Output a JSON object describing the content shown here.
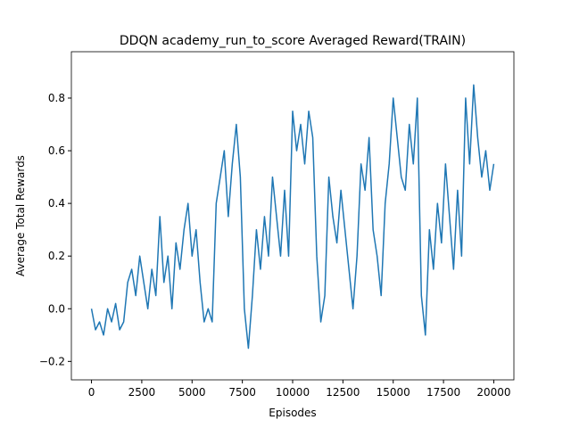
{
  "chart_data": {
    "type": "line",
    "title": "DDQN academy_run_to_score Averaged Reward(TRAIN)",
    "xlabel": "Episodes",
    "ylabel": "Average Total Rewards",
    "x": [
      0,
      200,
      400,
      600,
      800,
      1000,
      1200,
      1400,
      1600,
      1800,
      2000,
      2200,
      2400,
      2600,
      2800,
      3000,
      3200,
      3400,
      3600,
      3800,
      4000,
      4200,
      4400,
      4600,
      4800,
      5000,
      5200,
      5400,
      5600,
      5800,
      6000,
      6200,
      6400,
      6600,
      6800,
      7000,
      7200,
      7400,
      7600,
      7800,
      8000,
      8200,
      8400,
      8600,
      8800,
      9000,
      9200,
      9400,
      9600,
      9800,
      10000,
      10200,
      10400,
      10600,
      10800,
      11000,
      11200,
      11400,
      11600,
      11800,
      12000,
      12200,
      12400,
      12600,
      12800,
      13000,
      13200,
      13400,
      13600,
      13800,
      14000,
      14200,
      14400,
      14600,
      14800,
      15000,
      15200,
      15400,
      15600,
      15800,
      16000,
      16200,
      16400,
      16600,
      16800,
      17000,
      17200,
      17400,
      17600,
      17800,
      18000,
      18200,
      18400,
      18600,
      18800,
      19000,
      19200,
      19400,
      19600,
      19800,
      20000
    ],
    "series": [
      {
        "color": "#1f77b4",
        "values": [
          0.0,
          -0.08,
          -0.05,
          -0.1,
          0.0,
          -0.05,
          0.02,
          -0.08,
          -0.05,
          0.1,
          0.15,
          0.05,
          0.2,
          0.1,
          0.0,
          0.15,
          0.05,
          0.35,
          0.1,
          0.2,
          0.0,
          0.25,
          0.15,
          0.3,
          0.4,
          0.2,
          0.3,
          0.1,
          -0.05,
          0.0,
          -0.05,
          0.4,
          0.5,
          0.6,
          0.35,
          0.55,
          0.7,
          0.5,
          0.0,
          -0.15,
          0.05,
          0.3,
          0.15,
          0.35,
          0.2,
          0.5,
          0.35,
          0.2,
          0.45,
          0.2,
          0.75,
          0.6,
          0.7,
          0.55,
          0.75,
          0.65,
          0.2,
          -0.05,
          0.05,
          0.5,
          0.35,
          0.25,
          0.45,
          0.3,
          0.15,
          0.0,
          0.2,
          0.55,
          0.45,
          0.65,
          0.3,
          0.2,
          0.05,
          0.4,
          0.55,
          0.8,
          0.65,
          0.5,
          0.45,
          0.7,
          0.55,
          0.8,
          0.05,
          -0.1,
          0.3,
          0.15,
          0.4,
          0.25,
          0.55,
          0.35,
          0.15,
          0.45,
          0.2,
          0.8,
          0.55,
          0.85,
          0.65,
          0.5,
          0.6,
          0.45,
          0.55
        ]
      }
    ],
    "xlim": [
      -1000,
      21000
    ],
    "ylim": [
      -0.27,
      0.976
    ],
    "xticks": [
      0,
      2500,
      5000,
      7500,
      10000,
      12500,
      15000,
      17500,
      20000
    ],
    "yticks": [
      {
        "value": -0.2,
        "label": "−0.2"
      },
      {
        "value": 0,
        "label": "0.0"
      },
      0.2,
      0.4,
      0.6,
      0.8
    ]
  }
}
